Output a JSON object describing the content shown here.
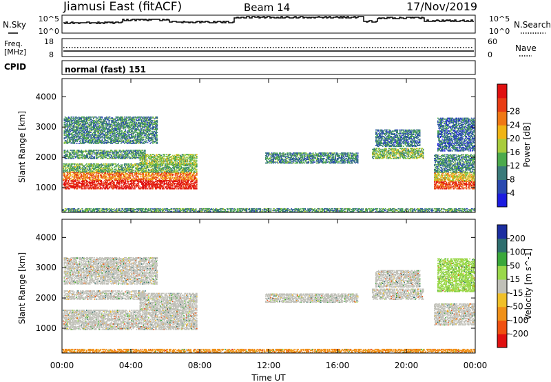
{
  "header": {
    "station": "Jiamusi East (fitACF)",
    "beam": "Beam 14",
    "date": "17/Nov/2019"
  },
  "params": {
    "nsky_label": "N.Sky",
    "nsky_ticks": [
      "10^5",
      "10^0"
    ],
    "nsearch_label": "N.Search",
    "nsearch_ticks": [
      "10^5",
      "10^0"
    ],
    "freq_label_1": "Freq.",
    "freq_label_2": "[MHz]",
    "freq_ticks": [
      "18",
      "8"
    ],
    "nave_label": "Nave",
    "nave_ticks": [
      "60",
      "0"
    ],
    "cpid_label": "CPID",
    "cpid_text": "normal (fast) 151"
  },
  "colors": {
    "power": [
      "#1c1ce0",
      "#2a4ab0",
      "#3a7a7a",
      "#4caa4c",
      "#a8cc3c",
      "#f0b414",
      "#f07814",
      "#e83c14",
      "#e01010"
    ],
    "velocity": [
      "#e01010",
      "#f05010",
      "#f09018",
      "#f0c028",
      "#c0c0b8",
      "#9ad84a",
      "#3aa83a",
      "#2e6e6e",
      "#1c2ea0"
    ]
  },
  "chart_data": [
    {
      "type": "heatmap",
      "name": "power-panel",
      "xlabel": "",
      "ylabel": "Slant Range [km]",
      "xlim": [
        0,
        24
      ],
      "ylim": [
        180,
        4600
      ],
      "yticks": [
        "1000",
        "2000",
        "3000",
        "4000"
      ],
      "colorbar_label": "Power [dB]",
      "colorbar_ticks": [
        "4",
        "8",
        "12",
        "16",
        "20",
        "24",
        "28"
      ],
      "clim": [
        0,
        30
      ],
      "regions": [
        {
          "t": [
            0.05,
            7.8
          ],
          "r": [
            950,
            1500
          ],
          "v": 22
        },
        {
          "t": [
            0.05,
            7.8
          ],
          "r": [
            1500,
            1800
          ],
          "v": 12
        },
        {
          "t": [
            0.1,
            4.8
          ],
          "r": [
            1950,
            2250
          ],
          "v": 10
        },
        {
          "t": [
            0.1,
            5.5
          ],
          "r": [
            2450,
            3350
          ],
          "v": 9
        },
        {
          "t": [
            4.5,
            7.8
          ],
          "r": [
            1750,
            2100
          ],
          "v": 14
        },
        {
          "t": [
            11.8,
            17.2
          ],
          "r": [
            1800,
            2150
          ],
          "v": 9
        },
        {
          "t": [
            18.0,
            21.0
          ],
          "r": [
            1950,
            2300
          ],
          "v": 13
        },
        {
          "t": [
            18.2,
            20.8
          ],
          "r": [
            2350,
            2900
          ],
          "v": 8
        },
        {
          "t": [
            21.6,
            24.0
          ],
          "r": [
            950,
            1500
          ],
          "v": 17
        },
        {
          "t": [
            21.6,
            24.0
          ],
          "r": [
            1500,
            2100
          ],
          "v": 9
        },
        {
          "t": [
            21.8,
            24.0
          ],
          "r": [
            2200,
            3300
          ],
          "v": 7
        },
        {
          "t": [
            0.0,
            24.0
          ],
          "r": [
            200,
            300
          ],
          "v": 10
        }
      ]
    },
    {
      "type": "heatmap",
      "name": "velocity-panel",
      "xlabel": "Time UT",
      "ylabel": "Slant Range [km]",
      "xlim": [
        0,
        24
      ],
      "ylim": [
        180,
        4600
      ],
      "xticks": [
        "00:00",
        "04:00",
        "08:00",
        "12:00",
        "16:00",
        "20:00",
        "00:00"
      ],
      "yticks": [
        "1000",
        "2000",
        "3000",
        "4000"
      ],
      "colorbar_label": "Velocity [m s^-1]",
      "colorbar_ticks": [
        "-200",
        "-100",
        "-50",
        "-15",
        "15",
        "50",
        "100",
        "200"
      ],
      "regions": [
        {
          "t": [
            0.05,
            7.8
          ],
          "r": [
            950,
            1600
          ],
          "v": 0
        },
        {
          "t": [
            0.1,
            4.8
          ],
          "r": [
            1950,
            2250
          ],
          "v": 0
        },
        {
          "t": [
            4.5,
            7.8
          ],
          "r": [
            1600,
            2150
          ],
          "v": 0
        },
        {
          "t": [
            0.1,
            5.5
          ],
          "r": [
            2450,
            3350
          ],
          "v": 10
        },
        {
          "t": [
            11.8,
            17.2
          ],
          "r": [
            1850,
            2150
          ],
          "v": 0
        },
        {
          "t": [
            18.0,
            21.0
          ],
          "r": [
            1950,
            2300
          ],
          "v": 0
        },
        {
          "t": [
            18.2,
            20.8
          ],
          "r": [
            2350,
            2900
          ],
          "v": 0
        },
        {
          "t": [
            21.6,
            24.0
          ],
          "r": [
            1100,
            1800
          ],
          "v": 0
        },
        {
          "t": [
            21.8,
            24.0
          ],
          "r": [
            2200,
            3300
          ],
          "v": 20
        },
        {
          "t": [
            0.0,
            24.0
          ],
          "r": [
            200,
            300
          ],
          "v": -60
        }
      ]
    }
  ]
}
